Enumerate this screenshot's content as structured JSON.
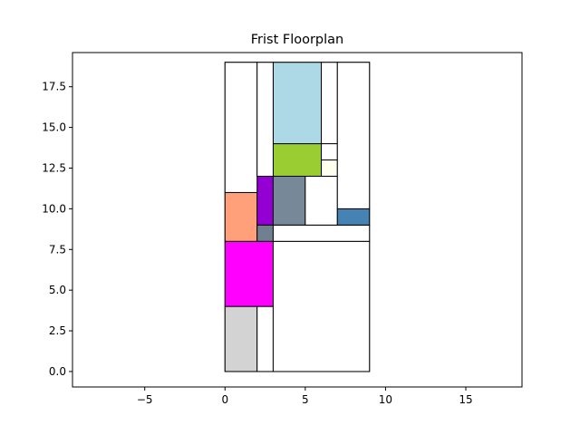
{
  "chart_data": {
    "type": "floorplan",
    "title": "Frist Floorplan",
    "xlabel": "",
    "ylabel": "",
    "xlim": [
      -9.5,
      18.5
    ],
    "ylim": [
      -0.95,
      19.6
    ],
    "xticks": [
      -5,
      0,
      5,
      10,
      15
    ],
    "xtick_labels": [
      "−5",
      "0",
      "5",
      "10",
      "15"
    ],
    "yticks": [
      0,
      2.5,
      5,
      7.5,
      10,
      12.5,
      15,
      17.5
    ],
    "ytick_labels": [
      "0.0",
      "2.5",
      "5.0",
      "7.5",
      "10.0",
      "12.5",
      "15.0",
      "17.5"
    ],
    "grid": false,
    "rectangles": [
      {
        "x": 0,
        "y": 0,
        "w": 9,
        "h": 19,
        "fill": "#ffffff"
      },
      {
        "x": 0,
        "y": 0,
        "w": 2,
        "h": 4,
        "fill": "#d3d3d3"
      },
      {
        "x": 2,
        "y": 0,
        "w": 1,
        "h": 4,
        "fill": "#ffffff"
      },
      {
        "x": 3,
        "y": 0,
        "w": 6,
        "h": 8,
        "fill": "#ffffff"
      },
      {
        "x": 0,
        "y": 4,
        "w": 3,
        "h": 4,
        "fill": "#ff00ff"
      },
      {
        "x": 0,
        "y": 8,
        "w": 2,
        "h": 3,
        "fill": "#ffa07a"
      },
      {
        "x": 2,
        "y": 8,
        "w": 1,
        "h": 1,
        "fill": "#708090"
      },
      {
        "x": 3,
        "y": 8,
        "w": 6,
        "h": 1,
        "fill": "#ffffff"
      },
      {
        "x": 2,
        "y": 9,
        "w": 1,
        "h": 3,
        "fill": "#9400d3"
      },
      {
        "x": 3,
        "y": 9,
        "w": 2,
        "h": 3,
        "fill": "#778899"
      },
      {
        "x": 5,
        "y": 9,
        "w": 2,
        "h": 3,
        "fill": "#ffffff"
      },
      {
        "x": 7,
        "y": 9,
        "w": 2,
        "h": 1,
        "fill": "#4682b4"
      },
      {
        "x": 3,
        "y": 12,
        "w": 3,
        "h": 2,
        "fill": "#9acd32"
      },
      {
        "x": 6,
        "y": 12,
        "w": 1,
        "h": 1,
        "fill": "#fffff0"
      },
      {
        "x": 6,
        "y": 13,
        "w": 1,
        "h": 1,
        "fill": "#ffffff"
      },
      {
        "x": 3,
        "y": 14,
        "w": 3,
        "h": 5,
        "fill": "#add8e6"
      },
      {
        "x": 0,
        "y": 11,
        "w": 2,
        "h": 8,
        "fill": "#ffffff"
      },
      {
        "x": 2,
        "y": 12,
        "w": 1,
        "h": 7,
        "fill": "#ffffff"
      },
      {
        "x": 6,
        "y": 14,
        "w": 1,
        "h": 5,
        "fill": "#ffffff"
      },
      {
        "x": 7,
        "y": 10,
        "w": 2,
        "h": 9,
        "fill": "#ffffff"
      }
    ]
  }
}
